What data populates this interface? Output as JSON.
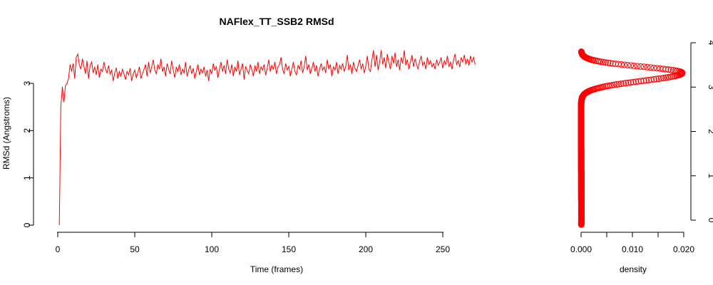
{
  "chart_data": [
    {
      "type": "line",
      "title": "NAFlex_TT_SSB2 RMSd",
      "xlabel": "Time (frames)",
      "ylabel": "RMSd (Angstroms)",
      "xlim": [
        0,
        250
      ],
      "ylim": [
        0,
        3.0
      ],
      "x_ticks": [
        "0",
        "50",
        "100",
        "150",
        "200",
        "250"
      ],
      "y_ticks": [
        "0",
        "1",
        "2",
        "3"
      ],
      "series_color": "#ff0000",
      "grid": false,
      "series": [
        {
          "x_start": 1,
          "x_step": 1,
          "values": [
            0,
            2.5,
            2.93,
            2.6,
            2.95,
            3.0,
            3.1,
            3.4,
            3.25,
            3.42,
            3.1,
            3.55,
            3.62,
            3.4,
            3.3,
            3.52,
            3.36,
            3.2,
            3.48,
            3.1,
            3.38,
            3.45,
            3.22,
            3.35,
            3.18,
            3.4,
            3.12,
            3.3,
            3.25,
            3.45,
            3.3,
            3.22,
            3.38,
            3.2,
            3.28,
            3.05,
            3.22,
            3.33,
            3.1,
            3.25,
            3.15,
            3.3,
            3.2,
            3.08,
            3.25,
            3.18,
            3.32,
            3.05,
            3.2,
            3.28,
            3.12,
            3.22,
            3.35,
            3.1,
            3.2,
            3.3,
            3.4,
            3.15,
            3.45,
            3.22,
            3.35,
            3.5,
            3.28,
            3.2,
            3.4,
            3.3,
            3.52,
            3.25,
            3.35,
            3.15,
            3.42,
            3.3,
            3.2,
            3.48,
            3.28,
            3.12,
            3.35,
            3.25,
            3.4,
            3.18,
            3.3,
            3.22,
            3.45,
            3.15,
            3.28,
            3.38,
            3.2,
            3.32,
            3.1,
            3.25,
            3.4,
            3.18,
            3.3,
            3.22,
            3.35,
            3.15,
            3.28,
            3.05,
            3.3,
            3.2,
            3.42,
            3.28,
            3.35,
            3.12,
            3.3,
            3.45,
            3.25,
            3.38,
            3.2,
            3.5,
            3.3,
            3.22,
            3.4,
            3.15,
            3.35,
            3.25,
            3.48,
            3.18,
            3.3,
            3.42,
            3.08,
            3.35,
            3.28,
            3.2,
            3.4,
            3.3,
            3.15,
            3.38,
            3.25,
            3.45,
            3.2,
            3.35,
            3.28,
            3.4,
            3.18,
            3.32,
            3.5,
            3.25,
            3.38,
            3.3,
            3.45,
            3.2,
            3.35,
            3.4,
            3.55,
            3.3,
            3.2,
            3.42,
            3.28,
            3.36,
            3.15,
            3.3,
            3.45,
            3.25,
            3.18,
            3.38,
            3.3,
            3.48,
            3.22,
            3.35,
            3.58,
            3.28,
            3.4,
            3.2,
            3.32,
            3.45,
            3.25,
            3.38,
            3.15,
            3.3,
            3.42,
            3.28,
            3.35,
            3.22,
            3.5,
            3.3,
            3.4,
            3.15,
            3.35,
            3.28,
            3.45,
            3.2,
            3.38,
            3.3,
            3.42,
            3.25,
            3.35,
            3.6,
            3.28,
            3.4,
            3.2,
            3.45,
            3.32,
            3.25,
            3.38,
            3.5,
            3.3,
            3.42,
            3.22,
            3.36,
            3.58,
            3.3,
            3.25,
            3.5,
            3.7,
            3.35,
            3.6,
            3.28,
            3.45,
            3.7,
            3.4,
            3.55,
            3.32,
            3.62,
            3.45,
            3.3,
            3.58,
            3.42,
            3.65,
            3.35,
            3.5,
            3.28,
            3.55,
            3.42,
            3.7,
            3.38,
            3.5,
            3.3,
            3.45,
            3.6,
            3.35,
            3.52,
            3.4,
            3.3,
            3.48,
            3.58,
            3.38,
            3.45,
            3.3,
            3.55,
            3.4,
            3.48,
            3.35,
            3.42,
            3.3,
            3.5,
            3.38,
            3.45,
            3.55,
            3.32,
            3.48,
            3.4,
            3.58,
            3.35,
            3.45,
            3.3,
            3.5,
            3.62,
            3.4,
            3.48,
            3.35,
            3.55,
            3.45,
            3.6,
            3.4,
            3.52,
            3.38,
            3.58,
            3.45,
            3.55,
            3.4
          ]
        }
      ]
    },
    {
      "type": "scatter",
      "xlabel": "density",
      "xlim": [
        0,
        0.02
      ],
      "ylim": [
        0,
        4
      ],
      "x_ticks": [
        "0.000",
        "0.010",
        "0.020"
      ],
      "y_ticks": [
        "0",
        "1",
        "2",
        "3",
        "4"
      ],
      "y_axis_side": "right",
      "marker": "open-circle",
      "series_color": "#ff0000",
      "grid": false,
      "density_peak_y": 3.32,
      "density_peak_value": 0.0197,
      "y_range": [
        -0.1,
        3.8
      ]
    }
  ]
}
